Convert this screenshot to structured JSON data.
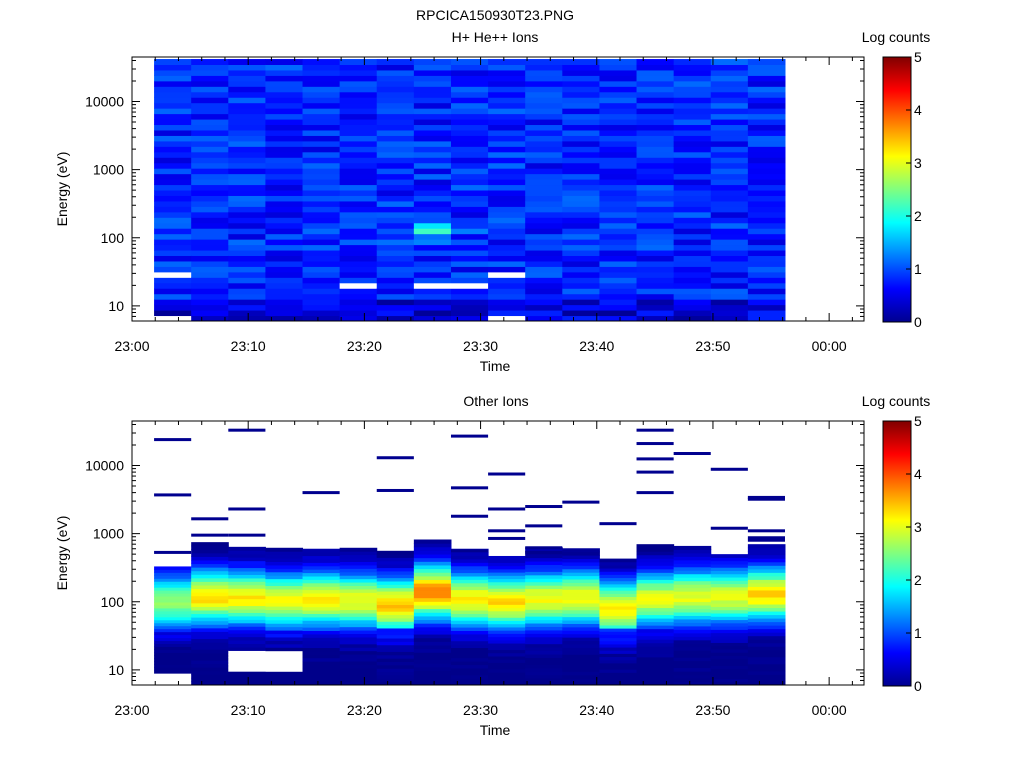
{
  "figure_title": "RPCICA150930T23.PNG",
  "colors": {
    "colormap": [
      "#00008f",
      "#0000ff",
      "#00ffff",
      "#ffff00",
      "#ff0000",
      "#800000"
    ],
    "axis": "#000000",
    "background": "#ffffff"
  },
  "chart_data": [
    {
      "type": "heatmap",
      "title": "H+ He++ Ions",
      "xlabel": "Time",
      "ylabel": "Energy (eV)",
      "x_tick_labels": [
        "23:00",
        "23:10",
        "23:20",
        "23:30",
        "23:40",
        "23:50",
        "00:00"
      ],
      "xlim_minutes": [
        0,
        63
      ],
      "data_xrange_minutes": [
        1.9,
        56.2
      ],
      "yscale": "log",
      "ylim": [
        6,
        45000
      ],
      "data_yrange": [
        6,
        42000
      ],
      "y_tick_labels": [
        "10",
        "100",
        "1000",
        "10000"
      ],
      "y_tick_values": [
        10,
        100,
        1000,
        10000
      ],
      "colorbar": {
        "label": "Log counts",
        "min": 0,
        "max": 5,
        "tick_labels": [
          "0",
          "1",
          "2",
          "3",
          "4",
          "5"
        ]
      },
      "time_columns": 17,
      "energy_bins": 48,
      "typical_log_counts": 0.8,
      "peak": {
        "energy_eV": 130,
        "time_minutes": 25.5,
        "log_counts": 1.9
      },
      "gaps_energy_eV": [
        10,
        20,
        28,
        48,
        110,
        170,
        340,
        1050,
        2700,
        4600,
        11500,
        33000
      ]
    },
    {
      "type": "heatmap",
      "title": "Other Ions",
      "xlabel": "Time",
      "ylabel": "Energy (eV)",
      "x_tick_labels": [
        "23:00",
        "23:10",
        "23:20",
        "23:30",
        "23:40",
        "23:50",
        "00:00"
      ],
      "xlim_minutes": [
        0,
        63
      ],
      "data_xrange_minutes": [
        1.9,
        56.2
      ],
      "yscale": "log",
      "ylim": [
        6,
        45000
      ],
      "y_tick_labels": [
        "10",
        "100",
        "1000",
        "10000"
      ],
      "y_tick_values": [
        10,
        100,
        1000,
        10000
      ],
      "colorbar": {
        "label": "Log counts",
        "min": 0,
        "max": 5,
        "tick_labels": [
          "0",
          "1",
          "2",
          "3",
          "4",
          "5"
        ]
      },
      "time_columns": 17,
      "column_upper_energy_eV": [
        330,
        750,
        640,
        620,
        600,
        620,
        560,
        820,
        600,
        470,
        630,
        610,
        430,
        700,
        660,
        500,
        700
      ],
      "peak_energy_eV": [
        100,
        120,
        115,
        105,
        110,
        105,
        90,
        140,
        110,
        100,
        110,
        115,
        80,
        110,
        120,
        120,
        130
      ],
      "peak_log_counts": [
        2.6,
        3.3,
        3.2,
        3.1,
        3.2,
        3.1,
        3.4,
        3.7,
        3.2,
        3.3,
        3.1,
        3.1,
        3.2,
        3.0,
        3.0,
        3.0,
        3.3
      ],
      "sparse_high_energy_eV": [
        [
          24000,
          3700,
          530
        ],
        [
          1650,
          950
        ],
        [
          33000,
          2300,
          950
        ],
        [],
        [
          4000
        ],
        [],
        [
          13000,
          4300,
          470
        ],
        [],
        [
          27000,
          4700,
          1800,
          560
        ],
        [
          7500,
          2300,
          1100,
          850
        ],
        [
          2500,
          1300,
          620,
          530
        ],
        [
          2900
        ],
        [
          1400
        ],
        [
          33000,
          21000,
          12500,
          8000,
          4000
        ],
        [
          15000
        ],
        [
          8800,
          1200
        ],
        [
          3400,
          3200,
          1100,
          870,
          800
        ]
      ]
    }
  ]
}
